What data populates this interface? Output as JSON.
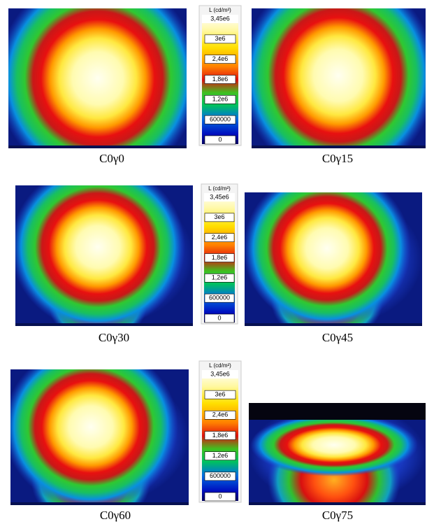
{
  "panels": [
    {
      "label": "C0γ0"
    },
    {
      "label": "C0γ15"
    },
    {
      "label": "C0γ30"
    },
    {
      "label": "C0γ45"
    },
    {
      "label": "C0γ60"
    },
    {
      "label": "C0γ75"
    }
  ],
  "colorbars": [
    {
      "title": "L (cd/m²)",
      "ticks": [
        "3,45e6",
        "3e6",
        "2,4e6",
        "1,8e6",
        "1,2e6",
        "600000",
        "0"
      ]
    },
    {
      "title": "L (cd/m²)",
      "ticks": [
        "3,45e6",
        "3e6",
        "2,4e6",
        "1,8e6",
        "1,2e6",
        "600000",
        "0"
      ]
    },
    {
      "title": "L (cd/m²)",
      "ticks": [
        "3,45e6",
        "3e6",
        "2,4e6",
        "1,8e6",
        "1,2e6",
        "600000",
        "0"
      ]
    }
  ]
}
